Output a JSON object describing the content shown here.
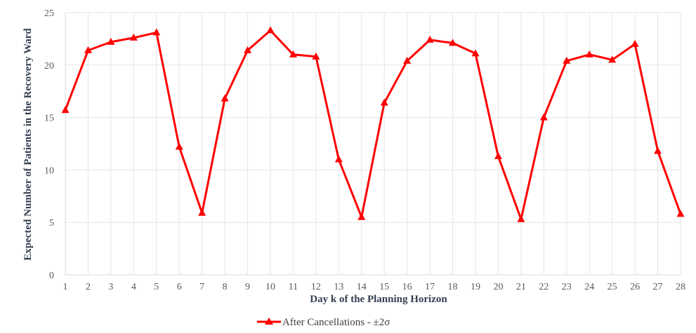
{
  "chart_data": {
    "type": "line",
    "title": "",
    "xlabel": "Day k of the Planning Horizon",
    "ylabel": "Expected Number of Patients in the Recovery Ward",
    "x": [
      1,
      2,
      3,
      4,
      5,
      6,
      7,
      8,
      9,
      10,
      11,
      12,
      13,
      14,
      15,
      16,
      17,
      18,
      19,
      20,
      21,
      22,
      23,
      24,
      25,
      26,
      27,
      28
    ],
    "ylim": [
      0,
      25
    ],
    "yticks": [
      0,
      5,
      10,
      15,
      20,
      25
    ],
    "grid": true,
    "legend_position": "bottom",
    "series": [
      {
        "name": "After Cancellations - ±2σ",
        "color": "#ff0000",
        "marker": "triangle",
        "values": [
          15.7,
          21.4,
          22.2,
          22.6,
          23.1,
          12.2,
          5.9,
          16.8,
          21.4,
          23.3,
          21.0,
          20.8,
          11.0,
          5.5,
          16.4,
          20.4,
          22.4,
          22.1,
          21.1,
          11.3,
          5.3,
          15.0,
          20.4,
          21.0,
          20.5,
          22.0,
          11.8,
          5.8
        ]
      }
    ]
  }
}
